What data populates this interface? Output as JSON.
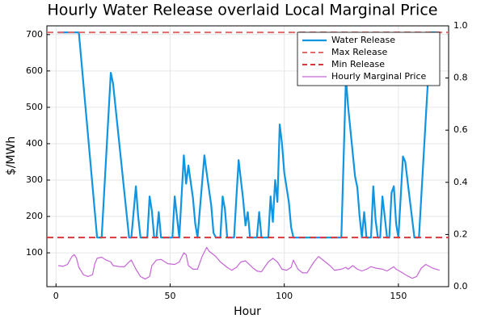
{
  "chart_data": {
    "type": "line",
    "title": "Hourly Water Release overlaid Local Marginal Price",
    "xlabel": "Hour",
    "ylabel": "$/MWh",
    "xlim": [
      -4,
      172
    ],
    "xticks": [
      0,
      50,
      100,
      150
    ],
    "ylim": [
      7,
      724
    ],
    "yticks": [
      100,
      200,
      300,
      400,
      500,
      600,
      700
    ],
    "y2lim": [
      0,
      1
    ],
    "y2ticks": [
      {
        "value": 0,
        "label": "0.0"
      },
      0.2,
      0.4,
      0.6,
      0.8,
      {
        "value": 1,
        "label": "1.0"
      }
    ],
    "grid": true,
    "legend": "top-right",
    "series": [
      {
        "name": "Water Release",
        "color": "#0f95e2",
        "style": "solid",
        "width": 2.2,
        "x": [
          1,
          10,
          18,
          20,
          24,
          25,
          32,
          33,
          35,
          36,
          37,
          40,
          41,
          42,
          43,
          44,
          45,
          46,
          51,
          52,
          54,
          56,
          57,
          58,
          60,
          61,
          62,
          65,
          66,
          68,
          69,
          70,
          72,
          73,
          74,
          75,
          78,
          79,
          80,
          81,
          82,
          83,
          84,
          85,
          88,
          89,
          90,
          93,
          94,
          95,
          96,
          97,
          98,
          99,
          100,
          102,
          103,
          104,
          125,
          127,
          128,
          131,
          132,
          133,
          134,
          135,
          136,
          138,
          139,
          140,
          141,
          142,
          143,
          144,
          145,
          146,
          147,
          148,
          149,
          150,
          152,
          153,
          157,
          159,
          163,
          164,
          168
        ],
        "values": [
          706,
          706,
          142,
          142,
          595,
          565,
          142,
          142,
          283,
          200,
          142,
          142,
          255,
          215,
          142,
          142,
          212,
          142,
          142,
          255,
          142,
          368,
          290,
          340,
          250,
          180,
          142,
          368,
          320,
          230,
          155,
          142,
          142,
          255,
          220,
          142,
          142,
          250,
          355,
          300,
          245,
          175,
          212,
          142,
          142,
          212,
          142,
          142,
          255,
          185,
          300,
          240,
          453,
          400,
          320,
          240,
          170,
          142,
          142,
          580,
          500,
          310,
          280,
          200,
          142,
          212,
          142,
          142,
          283,
          190,
          142,
          142,
          255,
          200,
          142,
          142,
          265,
          283,
          180,
          142,
          365,
          350,
          142,
          142,
          580,
          706,
          706
        ]
      },
      {
        "name": "Max Release",
        "color": "#e46a6a",
        "style": "dashed",
        "width": 2,
        "values": [
          706
        ]
      },
      {
        "name": "Min Release",
        "color": "#d9373b",
        "style": "dashed",
        "width": 2,
        "values": [
          142
        ]
      },
      {
        "name": "Hourly Marginal Price",
        "color": "#c566d6",
        "style": "solid",
        "width": 1.2,
        "x": [
          1,
          3,
          5,
          7,
          8,
          9,
          10,
          12,
          14,
          16,
          17,
          18,
          20,
          22,
          24,
          25,
          28,
          30,
          32,
          33,
          35,
          37,
          39,
          41,
          42,
          44,
          46,
          49,
          52,
          54,
          56,
          57,
          58,
          60,
          62,
          64,
          66,
          67,
          70,
          72,
          75,
          77,
          79,
          81,
          83,
          86,
          88,
          90,
          93,
          95,
          97,
          99,
          101,
          103,
          104,
          106,
          108,
          110,
          113,
          115,
          117,
          120,
          122,
          125,
          127,
          128,
          130,
          132,
          134,
          136,
          138,
          140,
          143,
          145,
          148,
          149,
          151,
          153,
          156,
          158,
          160,
          162,
          165,
          168
        ],
        "values": [
          65,
          63,
          68,
          90,
          95,
          85,
          60,
          40,
          35,
          40,
          70,
          85,
          88,
          80,
          75,
          65,
          62,
          62,
          75,
          80,
          55,
          35,
          28,
          35,
          65,
          80,
          82,
          70,
          68,
          75,
          100,
          95,
          65,
          55,
          55,
          90,
          115,
          105,
          90,
          75,
          60,
          52,
          60,
          75,
          78,
          60,
          50,
          48,
          75,
          85,
          75,
          55,
          52,
          60,
          80,
          55,
          45,
          45,
          75,
          90,
          80,
          65,
          52,
          55,
          60,
          55,
          65,
          55,
          50,
          55,
          62,
          58,
          55,
          50,
          62,
          55,
          48,
          40,
          30,
          35,
          58,
          68,
          58,
          52
        ]
      }
    ]
  }
}
